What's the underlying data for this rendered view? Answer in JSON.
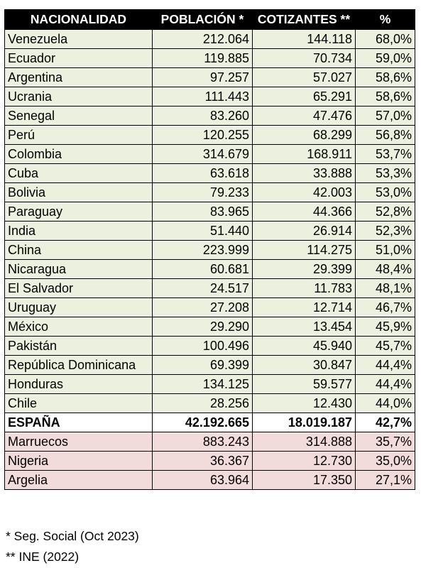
{
  "table": {
    "headers": [
      "NACIONALIDAD",
      "POBLACIÓN *",
      "COTIZANTES **",
      "%"
    ],
    "rows": [
      {
        "group": "above",
        "cells": [
          "Venezuela",
          "212.064",
          "144.118",
          "68,0%"
        ]
      },
      {
        "group": "above",
        "cells": [
          "Ecuador",
          "119.885",
          "70.734",
          "59,0%"
        ]
      },
      {
        "group": "above",
        "cells": [
          "Argentina",
          "97.257",
          "57.027",
          "58,6%"
        ]
      },
      {
        "group": "above",
        "cells": [
          "Ucrania",
          "111.443",
          "65.291",
          "58,6%"
        ]
      },
      {
        "group": "above",
        "cells": [
          "Senegal",
          "83.260",
          "47.476",
          "57,0%"
        ]
      },
      {
        "group": "above",
        "cells": [
          "Perú",
          "120.255",
          "68.299",
          "56,8%"
        ]
      },
      {
        "group": "above",
        "cells": [
          "Colombia",
          "314.679",
          "168.911",
          "53,7%"
        ]
      },
      {
        "group": "above",
        "cells": [
          "Cuba",
          "63.618",
          "33.888",
          "53,3%"
        ]
      },
      {
        "group": "above",
        "cells": [
          "Bolivia",
          "79.233",
          "42.003",
          "53,0%"
        ]
      },
      {
        "group": "above",
        "cells": [
          "Paraguay",
          "83.965",
          "44.366",
          "52,8%"
        ]
      },
      {
        "group": "above",
        "cells": [
          "India",
          "51.440",
          "26.914",
          "52,3%"
        ]
      },
      {
        "group": "above",
        "cells": [
          "China",
          "223.999",
          "114.275",
          "51,0%"
        ]
      },
      {
        "group": "above",
        "cells": [
          "Nicaragua",
          "60.681",
          "29.399",
          "48,4%"
        ]
      },
      {
        "group": "above",
        "cells": [
          "El Salvador",
          "24.517",
          "11.783",
          "48,1%"
        ]
      },
      {
        "group": "above",
        "cells": [
          "Uruguay",
          "27.208",
          "12.714",
          "46,7%"
        ]
      },
      {
        "group": "above",
        "cells": [
          "México",
          "29.290",
          "13.454",
          "45,9%"
        ]
      },
      {
        "group": "above",
        "cells": [
          "Pakistán",
          "100.496",
          "45.940",
          "45,7%"
        ]
      },
      {
        "group": "above",
        "cells": [
          "República Dominicana",
          "69.399",
          "30.847",
          "44,4%"
        ]
      },
      {
        "group": "above",
        "cells": [
          "Honduras",
          "134.125",
          "59.577",
          "44,4%"
        ]
      },
      {
        "group": "above",
        "cells": [
          "Chile",
          "28.256",
          "12.430",
          "44,0%"
        ]
      },
      {
        "group": "ref",
        "cells": [
          "ESPAÑA",
          "42.192.665",
          "18.019.187",
          "42,7%"
        ]
      },
      {
        "group": "below",
        "cells": [
          "Marruecos",
          "883.243",
          "314.888",
          "35,7%"
        ]
      },
      {
        "group": "below",
        "cells": [
          "Nigeria",
          "36.367",
          "12.730",
          "35,0%"
        ]
      },
      {
        "group": "below",
        "cells": [
          "Argelia",
          "63.964",
          "17.350",
          "27,1%"
        ]
      }
    ]
  },
  "notes": [
    "* Seg. Social (Oct 2023)",
    "** INE (2022)"
  ],
  "colors": {
    "header_bg": "#000000",
    "header_text": "#ffffff",
    "above_row_bg": "#ebf1de",
    "reference_row_bg": "#ffffff",
    "below_row_bg": "#f2dcdb"
  }
}
